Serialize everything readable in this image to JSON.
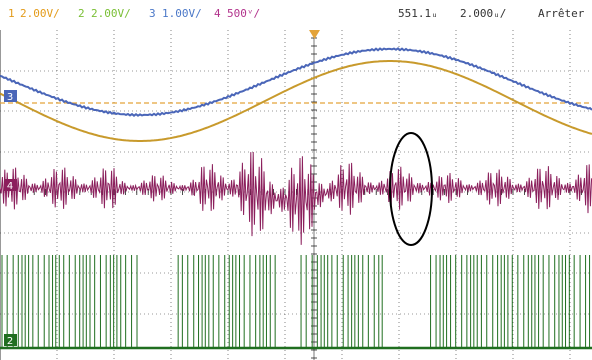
{
  "status_bar": {
    "ch1": {
      "number": "1",
      "scale": "2.00V/",
      "color": "#e39b1a"
    },
    "ch2": {
      "number": "2",
      "scale": "2.00V/",
      "color": "#7abf35"
    },
    "ch3": {
      "number": "3",
      "scale": "1.00V/",
      "color": "#4b78c8"
    },
    "ch4": {
      "number": "4",
      "scale": "500ᵛ/",
      "color": "#b2338c"
    },
    "time_offset": "551.1ᵤ",
    "time_scale": "2.000ᵤ/",
    "run_state": "Arrêter"
  },
  "markers": {
    "ch3": "3",
    "ch4": "4",
    "ch2": "2"
  },
  "colors": {
    "grid": "#333333",
    "ch1_trace": "#c89a2c",
    "ch2_trace": "#1f6e1f",
    "ch3_trace": "#4a66b8",
    "ch4_trace": "#8b1f5c",
    "reference_line": "#e3a33a",
    "trigger_marker": "#e3a33a",
    "annotation": "#000000"
  }
}
